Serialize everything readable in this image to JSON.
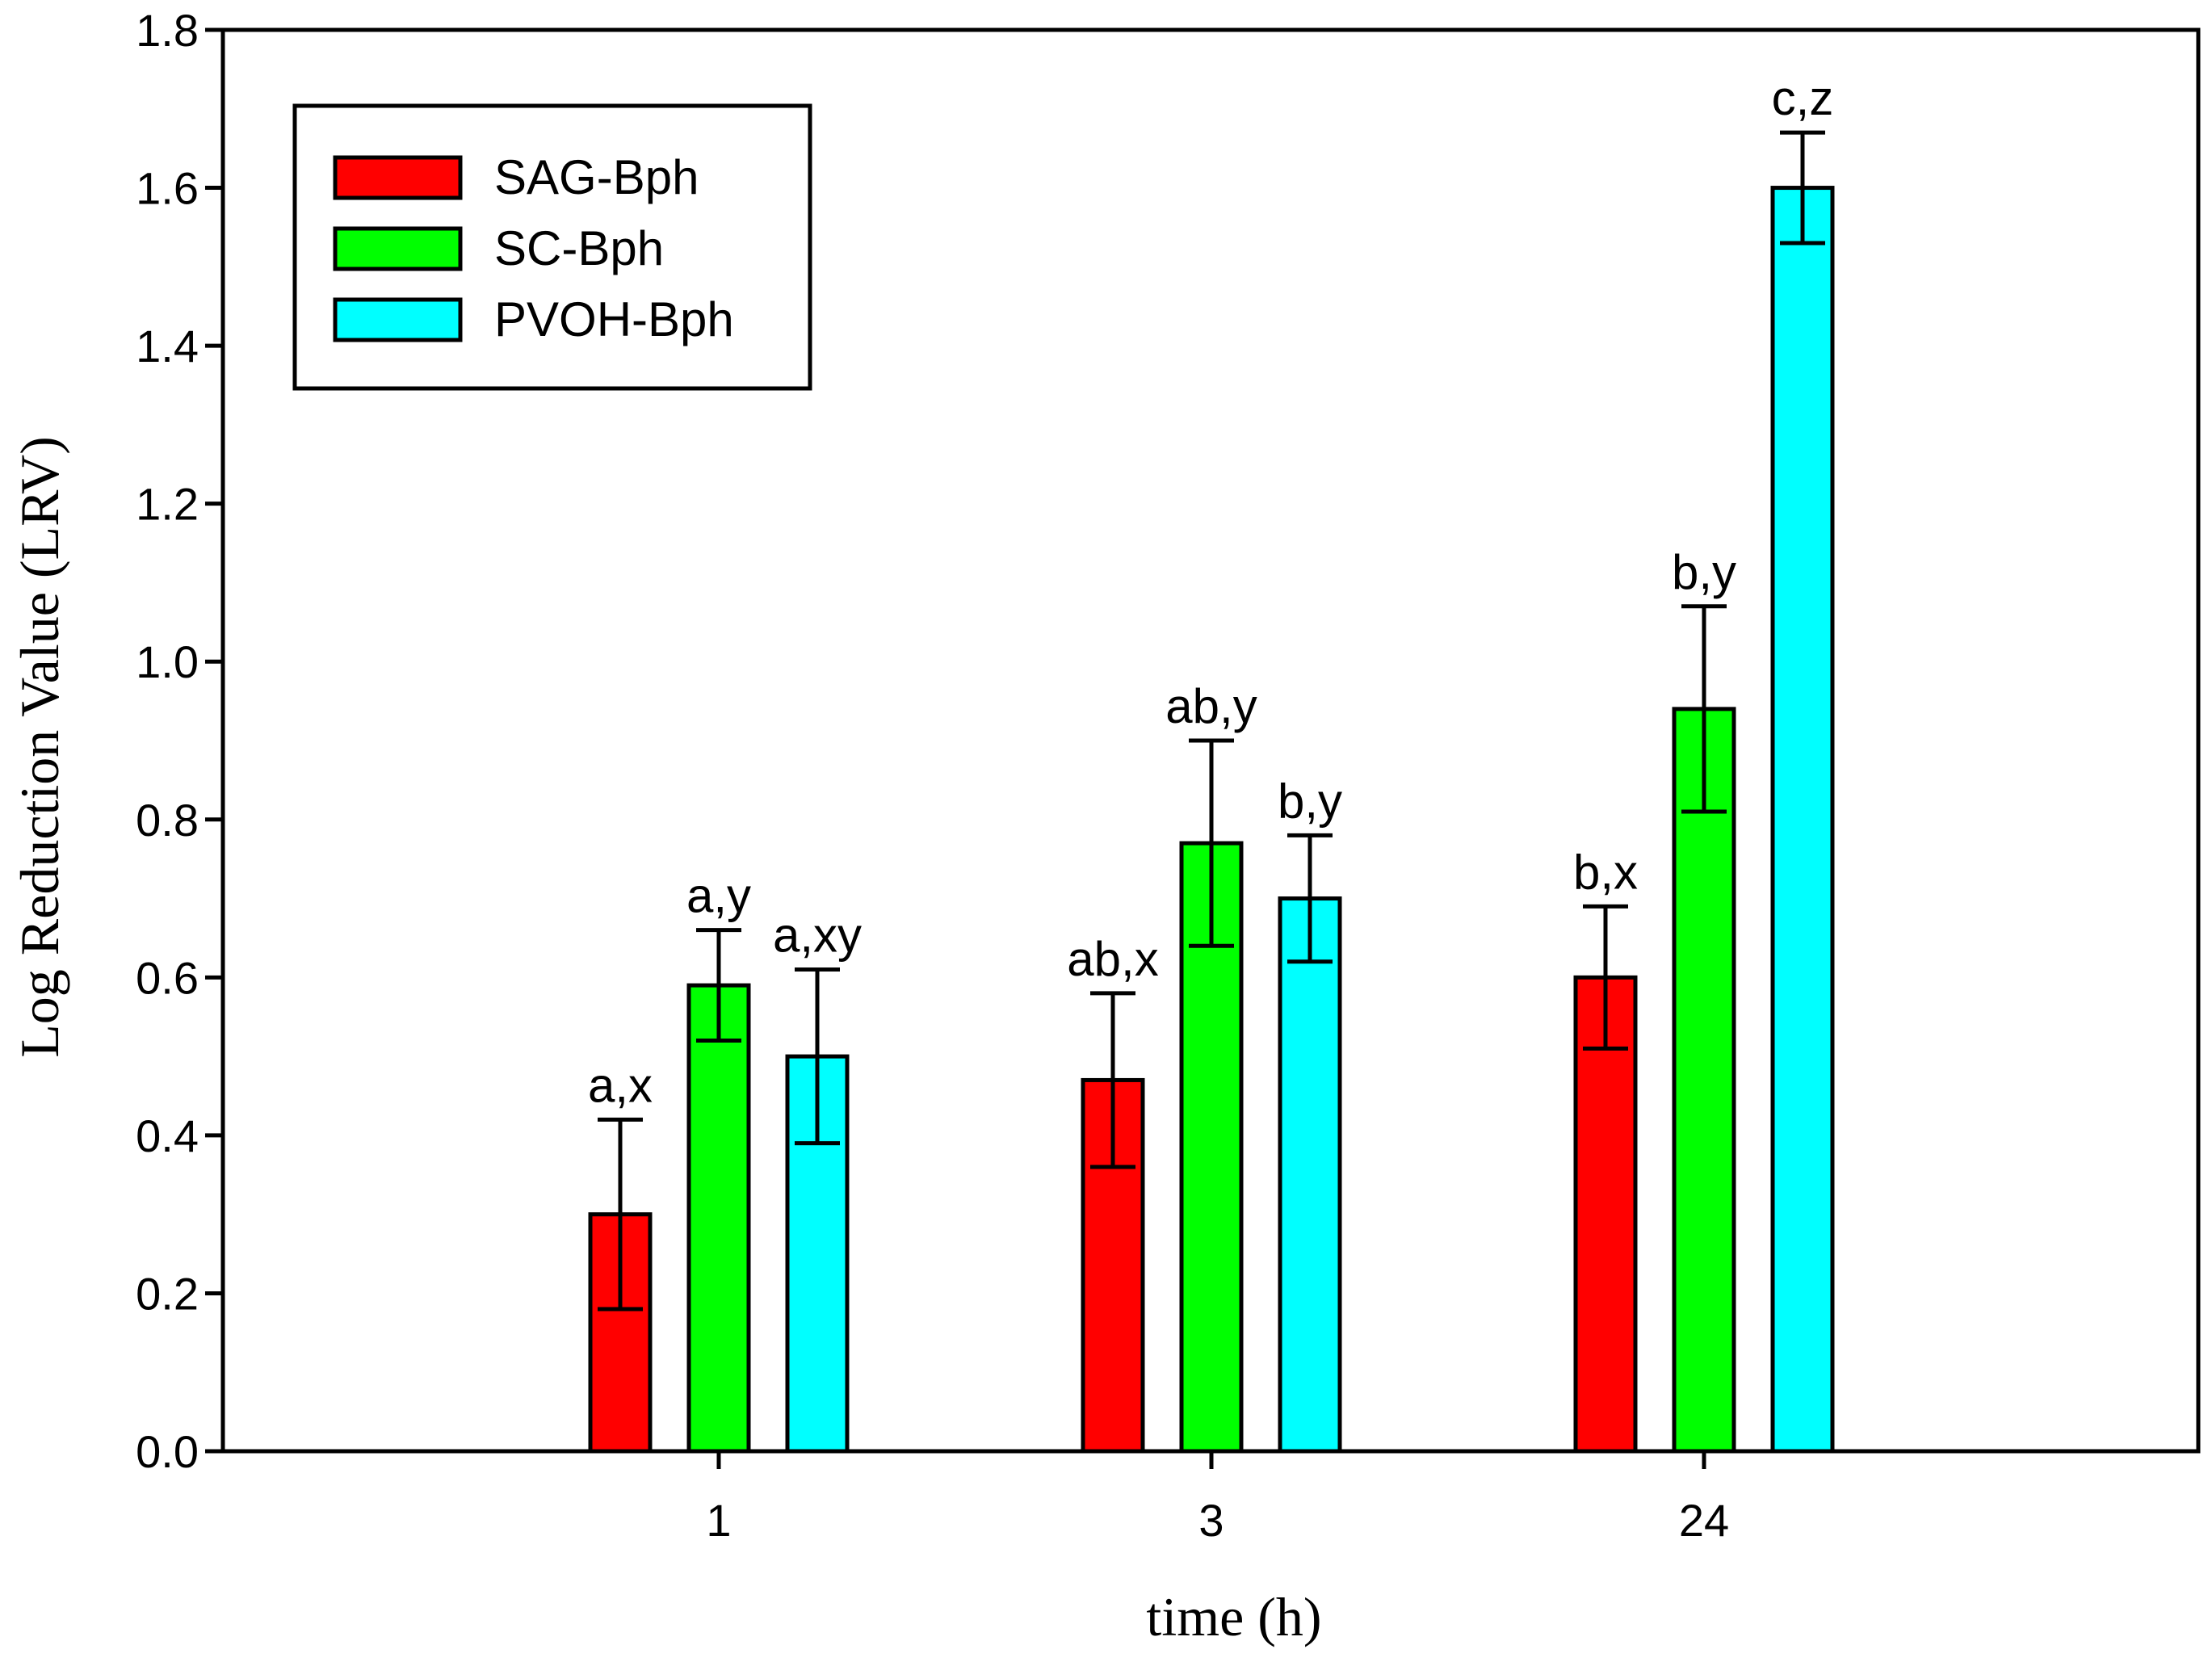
{
  "chart_data": {
    "type": "bar",
    "title": "",
    "xlabel": "time (h)",
    "ylabel": "Log Reduction Value (LRV)",
    "categories": [
      "1",
      "3",
      "24"
    ],
    "ylim": [
      0,
      1.8
    ],
    "yticks": [
      "0.0",
      "0.2",
      "0.4",
      "0.6",
      "0.8",
      "1.0",
      "1.2",
      "1.4",
      "1.6",
      "1.8"
    ],
    "legend_position": "top-left",
    "series": [
      {
        "name": "SAG-Bph",
        "color": "#ff0000",
        "values": [
          0.3,
          0.47,
          0.6
        ],
        "errors": [
          0.12,
          0.11,
          0.09
        ],
        "labels": [
          "a,x",
          "ab,x",
          "b,x"
        ]
      },
      {
        "name": "SC-Bph",
        "color": "#00ff00",
        "values": [
          0.59,
          0.77,
          0.94
        ],
        "errors": [
          0.07,
          0.13,
          0.13
        ],
        "labels": [
          "a,y",
          "ab,y",
          "b,y"
        ]
      },
      {
        "name": "PVOH-Bph",
        "color": "#00ffff",
        "values": [
          0.5,
          0.7,
          1.6
        ],
        "errors": [
          0.11,
          0.08,
          0.07
        ],
        "labels": [
          "a,xy",
          "b,y",
          "c,z"
        ]
      }
    ]
  }
}
